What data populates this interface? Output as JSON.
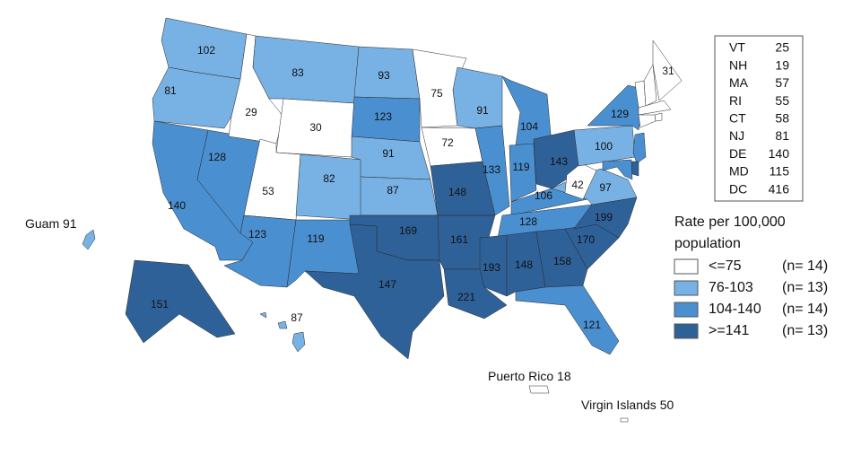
{
  "map": {
    "states": [
      {
        "value": 102,
        "color": "#78b1e4"
      },
      {
        "value": 81,
        "color": "#78b1e4"
      },
      {
        "value": 140,
        "color": "#4a8fd0"
      },
      {
        "value": 128,
        "color": "#4a8fd0"
      },
      {
        "value": 29,
        "color": "#ffffff"
      },
      {
        "value": 83,
        "color": "#78b1e4"
      },
      {
        "value": 30,
        "color": "#ffffff"
      },
      {
        "value": 53,
        "color": "#ffffff"
      },
      {
        "value": 123,
        "color": "#4a8fd0"
      },
      {
        "value": 82,
        "color": "#78b1e4"
      },
      {
        "value": 119,
        "color": "#4a8fd0"
      },
      {
        "value": 93,
        "color": "#78b1e4"
      },
      {
        "value": 123,
        "color": "#4a8fd0"
      },
      {
        "value": 91,
        "color": "#78b1e4"
      },
      {
        "value": 87,
        "color": "#78b1e4"
      },
      {
        "value": 169,
        "color": "#2f6199"
      },
      {
        "value": 147,
        "color": "#2f6199"
      },
      {
        "value": 75,
        "color": "#ffffff"
      },
      {
        "value": 72,
        "color": "#ffffff"
      },
      {
        "value": 148,
        "color": "#2f6199"
      },
      {
        "value": 161,
        "color": "#2f6199"
      },
      {
        "value": 221,
        "color": "#2f6199"
      },
      {
        "value": 91,
        "color": "#78b1e4"
      },
      {
        "value": 133,
        "color": "#4a8fd0"
      },
      {
        "value": 104,
        "color": "#4a8fd0"
      },
      {
        "value": 119,
        "color": "#4a8fd0"
      },
      {
        "value": 143,
        "color": "#2f6199"
      },
      {
        "value": 106,
        "color": "#4a8fd0"
      },
      {
        "value": 128,
        "color": "#4a8fd0"
      },
      {
        "value": 193,
        "color": "#2f6199"
      },
      {
        "value": 148,
        "color": "#2f6199"
      },
      {
        "value": 158,
        "color": "#2f6199"
      },
      {
        "value": 121,
        "color": "#4a8fd0"
      },
      {
        "value": 170,
        "color": "#2f6199"
      },
      {
        "value": 199,
        "color": "#2f6199"
      },
      {
        "value": 97,
        "color": "#78b1e4"
      },
      {
        "value": 42,
        "color": "#ffffff"
      },
      {
        "value": 100,
        "color": "#78b1e4"
      },
      {
        "value": 129,
        "color": "#4a8fd0"
      },
      {
        "value": 31,
        "color": "#ffffff"
      },
      {
        "value": 151,
        "color": "#2f6199"
      },
      {
        "value": 87,
        "color": "#78b1e4"
      }
    ],
    "territories": [
      {
        "name": "Guam",
        "value": 91,
        "color": "#78b1e4"
      },
      {
        "name": "Puerto Rico",
        "value": 18,
        "color": "#ffffff"
      },
      {
        "name": "Virgin Islands",
        "value": 50,
        "color": "#ffffff"
      }
    ]
  },
  "table": {
    "rows": [
      {
        "abbr": "VT",
        "value": 25
      },
      {
        "abbr": "NH",
        "value": 19
      },
      {
        "abbr": "MA",
        "value": 57
      },
      {
        "abbr": "RI",
        "value": 55
      },
      {
        "abbr": "CT",
        "value": 58
      },
      {
        "abbr": "NJ",
        "value": 81
      },
      {
        "abbr": "DE",
        "value": 140
      },
      {
        "abbr": "MD",
        "value": 115
      },
      {
        "abbr": "DC",
        "value": 416
      }
    ]
  },
  "legend": {
    "title": "Rate per 100,000 population",
    "items": [
      {
        "label": "<=75",
        "count": "(n= 14)",
        "color": "#ffffff"
      },
      {
        "label": "76-103",
        "count": "(n= 13)",
        "color": "#78b1e4"
      },
      {
        "label": "104-140",
        "count": "(n= 14)",
        "color": "#4a8fd0"
      },
      {
        "label": ">=141",
        "count": "(n= 13)",
        "color": "#2f6199"
      }
    ]
  }
}
